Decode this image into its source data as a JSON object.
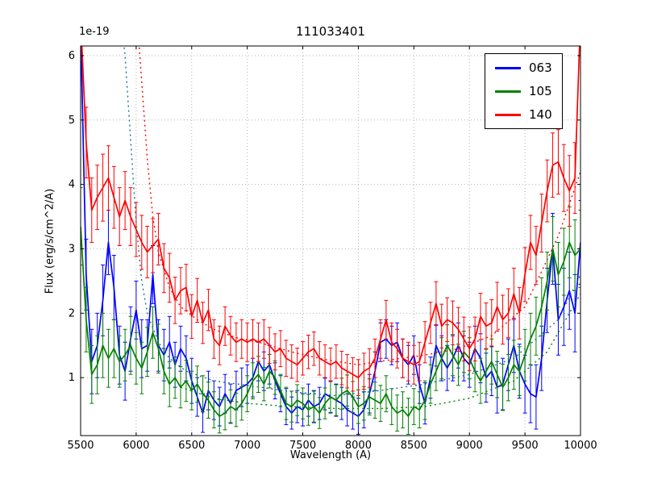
{
  "chart_data": {
    "type": "line",
    "title": "111033401",
    "xlabel": "Wavelength (A)",
    "ylabel": "Flux (erg/s/cm^2/A)",
    "y_offset_label": "1e-19",
    "xlim": [
      5500,
      10000
    ],
    "ylim": [
      0.1,
      6.15
    ],
    "xticks": [
      5500,
      6000,
      6500,
      7000,
      7500,
      8000,
      8500,
      9000,
      9500,
      10000
    ],
    "yticks": [
      1,
      2,
      3,
      4,
      5,
      6
    ],
    "grid": {
      "style": "dotted",
      "color": "#b3b3b3"
    },
    "frame_color": "#000000",
    "background": "#ffffff",
    "legend": {
      "position": "upper right",
      "labels": [
        "063",
        "105",
        "140"
      ]
    },
    "x_start": 5500,
    "x_step": 50,
    "series": [
      {
        "name": "063",
        "color": "#0000ff",
        "values": [
          6.5,
          2.6,
          1.25,
          1.5,
          2.2,
          3.1,
          2.4,
          1.35,
          1.1,
          1.6,
          2.05,
          1.45,
          1.5,
          2.6,
          1.5,
          1.35,
          1.55,
          1.2,
          1.45,
          1.3,
          0.95,
          0.7,
          0.45,
          0.8,
          0.65,
          0.55,
          0.75,
          0.6,
          0.8,
          0.85,
          0.9,
          1.0,
          1.25,
          1.1,
          1.2,
          0.95,
          0.75,
          0.55,
          0.45,
          0.55,
          0.5,
          0.65,
          0.55,
          0.6,
          0.75,
          0.7,
          0.65,
          0.6,
          0.5,
          0.45,
          0.4,
          0.5,
          0.75,
          1.1,
          1.55,
          1.6,
          1.5,
          1.55,
          1.3,
          1.2,
          1.35,
          0.9,
          0.6,
          1.0,
          1.5,
          1.3,
          1.15,
          1.3,
          1.5,
          1.3,
          1.2,
          1.45,
          1.3,
          1.0,
          1.1,
          0.85,
          0.9,
          1.2,
          1.5,
          1.1,
          0.9,
          0.75,
          0.7,
          1.3,
          2.2,
          3.0,
          1.9,
          2.1,
          2.35,
          2.0,
          3.1
        ],
        "errors": [
          0.7,
          0.55,
          0.5,
          0.5,
          0.55,
          0.5,
          0.5,
          0.45,
          0.45,
          0.5,
          0.45,
          0.45,
          0.4,
          0.45,
          0.4,
          0.4,
          0.4,
          0.35,
          0.35,
          0.35,
          0.35,
          0.3,
          0.3,
          0.3,
          0.3,
          0.3,
          0.3,
          0.3,
          0.3,
          0.3,
          0.3,
          0.3,
          0.3,
          0.3,
          0.3,
          0.28,
          0.28,
          0.28,
          0.25,
          0.25,
          0.25,
          0.25,
          0.25,
          0.25,
          0.25,
          0.25,
          0.25,
          0.25,
          0.25,
          0.25,
          0.28,
          0.28,
          0.3,
          0.3,
          0.3,
          0.3,
          0.3,
          0.3,
          0.3,
          0.3,
          0.3,
          0.3,
          0.32,
          0.32,
          0.32,
          0.35,
          0.35,
          0.35,
          0.35,
          0.35,
          0.35,
          0.35,
          0.38,
          0.38,
          0.38,
          0.4,
          0.4,
          0.4,
          0.42,
          0.42,
          0.45,
          0.45,
          0.5,
          0.5,
          0.5,
          0.55,
          0.55,
          0.6,
          0.6,
          0.6,
          0.65
        ]
      },
      {
        "name": "105",
        "color": "#008000",
        "values": [
          3.35,
          1.9,
          1.05,
          1.2,
          1.5,
          1.3,
          1.45,
          1.25,
          1.35,
          1.5,
          1.3,
          1.15,
          1.4,
          1.7,
          1.45,
          1.1,
          0.9,
          1.0,
          0.85,
          0.95,
          0.8,
          0.9,
          0.75,
          0.65,
          0.5,
          0.4,
          0.45,
          0.55,
          0.5,
          0.6,
          0.75,
          0.95,
          1.05,
          0.9,
          1.1,
          1.0,
          0.8,
          0.6,
          0.55,
          0.65,
          0.6,
          0.5,
          0.55,
          0.45,
          0.6,
          0.7,
          0.65,
          0.75,
          0.8,
          0.7,
          0.55,
          0.6,
          0.7,
          0.65,
          0.6,
          0.75,
          0.55,
          0.45,
          0.5,
          0.4,
          0.55,
          0.5,
          0.65,
          0.9,
          1.1,
          1.3,
          1.5,
          1.35,
          1.2,
          1.4,
          1.3,
          1.1,
          0.95,
          1.1,
          1.25,
          1.05,
          0.85,
          1.0,
          1.2,
          1.1,
          1.35,
          1.6,
          1.8,
          2.1,
          2.5,
          3.0,
          2.6,
          2.8,
          3.1,
          2.9,
          3.0
        ],
        "errors": [
          0.6,
          0.5,
          0.45,
          0.45,
          0.5,
          0.45,
          0.45,
          0.4,
          0.4,
          0.45,
          0.4,
          0.4,
          0.38,
          0.4,
          0.38,
          0.35,
          0.35,
          0.32,
          0.32,
          0.32,
          0.3,
          0.28,
          0.28,
          0.28,
          0.28,
          0.26,
          0.26,
          0.26,
          0.26,
          0.26,
          0.28,
          0.28,
          0.28,
          0.26,
          0.26,
          0.26,
          0.25,
          0.25,
          0.24,
          0.24,
          0.24,
          0.24,
          0.24,
          0.24,
          0.24,
          0.24,
          0.24,
          0.24,
          0.24,
          0.24,
          0.26,
          0.26,
          0.28,
          0.28,
          0.28,
          0.28,
          0.28,
          0.28,
          0.28,
          0.28,
          0.28,
          0.28,
          0.3,
          0.3,
          0.3,
          0.32,
          0.32,
          0.32,
          0.32,
          0.32,
          0.32,
          0.32,
          0.35,
          0.35,
          0.35,
          0.36,
          0.36,
          0.36,
          0.38,
          0.38,
          0.4,
          0.4,
          0.45,
          0.45,
          0.45,
          0.5,
          0.5,
          0.52,
          0.55,
          0.55,
          0.6
        ]
      },
      {
        "name": "140",
        "color": "#ff0000",
        "values": [
          6.6,
          4.65,
          3.6,
          3.8,
          3.95,
          4.1,
          3.8,
          3.5,
          3.75,
          3.5,
          3.3,
          3.1,
          2.95,
          3.05,
          3.15,
          2.7,
          2.55,
          2.2,
          2.35,
          2.4,
          1.95,
          2.2,
          1.85,
          2.05,
          1.6,
          1.5,
          1.8,
          1.65,
          1.55,
          1.6,
          1.55,
          1.6,
          1.55,
          1.6,
          1.5,
          1.4,
          1.45,
          1.3,
          1.25,
          1.2,
          1.3,
          1.4,
          1.45,
          1.3,
          1.25,
          1.2,
          1.25,
          1.15,
          1.1,
          1.05,
          1.0,
          1.1,
          1.15,
          1.3,
          1.6,
          1.9,
          1.55,
          1.45,
          1.3,
          1.25,
          1.2,
          1.25,
          1.55,
          1.85,
          2.15,
          1.8,
          1.9,
          1.85,
          1.75,
          1.6,
          1.45,
          1.6,
          1.95,
          1.8,
          1.85,
          2.1,
          1.9,
          2.0,
          2.3,
          2.0,
          2.6,
          3.1,
          2.9,
          3.4,
          3.9,
          4.3,
          4.35,
          4.1,
          3.9,
          4.1,
          6.6
        ],
        "errors": [
          0.65,
          0.55,
          0.5,
          0.5,
          0.52,
          0.5,
          0.48,
          0.45,
          0.45,
          0.45,
          0.42,
          0.42,
          0.4,
          0.42,
          0.4,
          0.38,
          0.38,
          0.36,
          0.36,
          0.36,
          0.34,
          0.34,
          0.32,
          0.32,
          0.3,
          0.3,
          0.3,
          0.3,
          0.3,
          0.3,
          0.3,
          0.3,
          0.3,
          0.3,
          0.28,
          0.28,
          0.28,
          0.28,
          0.26,
          0.26,
          0.26,
          0.26,
          0.26,
          0.26,
          0.26,
          0.26,
          0.26,
          0.26,
          0.26,
          0.26,
          0.28,
          0.28,
          0.3,
          0.3,
          0.3,
          0.3,
          0.3,
          0.3,
          0.3,
          0.3,
          0.3,
          0.3,
          0.32,
          0.32,
          0.34,
          0.34,
          0.34,
          0.34,
          0.34,
          0.34,
          0.34,
          0.34,
          0.36,
          0.36,
          0.36,
          0.38,
          0.38,
          0.38,
          0.4,
          0.4,
          0.42,
          0.42,
          0.45,
          0.45,
          0.48,
          0.5,
          0.5,
          0.52,
          0.55,
          0.55,
          0.6
        ]
      }
    ],
    "model_series": [
      {
        "name": "063-model",
        "style": "dotted",
        "color": "#20708a",
        "x": [
          5850,
          5900,
          5950,
          6000,
          6050,
          6100,
          6200,
          6300,
          6450,
          6700,
          7000,
          7400,
          7800,
          8200,
          8600,
          9000,
          9400,
          9800,
          10000
        ],
        "y": [
          6.8,
          6.0,
          4.7,
          3.4,
          2.5,
          2.0,
          1.55,
          1.3,
          1.1,
          0.95,
          0.88,
          0.78,
          0.72,
          0.8,
          0.9,
          1.05,
          1.3,
          1.9,
          2.6
        ]
      },
      {
        "name": "105-model",
        "style": "dotted",
        "color": "#008000",
        "x": [
          6400,
          6700,
          7000,
          7400,
          7800,
          8200,
          8600,
          9000,
          9400,
          9700,
          10000
        ],
        "y": [
          0.85,
          0.68,
          0.6,
          0.55,
          0.52,
          0.52,
          0.55,
          0.68,
          0.95,
          1.4,
          2.3
        ]
      },
      {
        "name": "140-model",
        "style": "dotted",
        "color": "#ff0000",
        "x": [
          6000,
          6050,
          6100,
          6150,
          6200,
          6300,
          6400,
          6550,
          6700,
          6900,
          7100,
          7400,
          7700,
          8000,
          8300,
          8600,
          8900,
          9200,
          9500,
          9800,
          10000
        ],
        "y": [
          6.8,
          5.6,
          4.4,
          3.5,
          2.95,
          2.4,
          2.1,
          1.9,
          1.75,
          1.62,
          1.55,
          1.4,
          1.28,
          1.2,
          1.28,
          1.35,
          1.45,
          1.65,
          2.1,
          3.2,
          4.2
        ]
      }
    ]
  }
}
